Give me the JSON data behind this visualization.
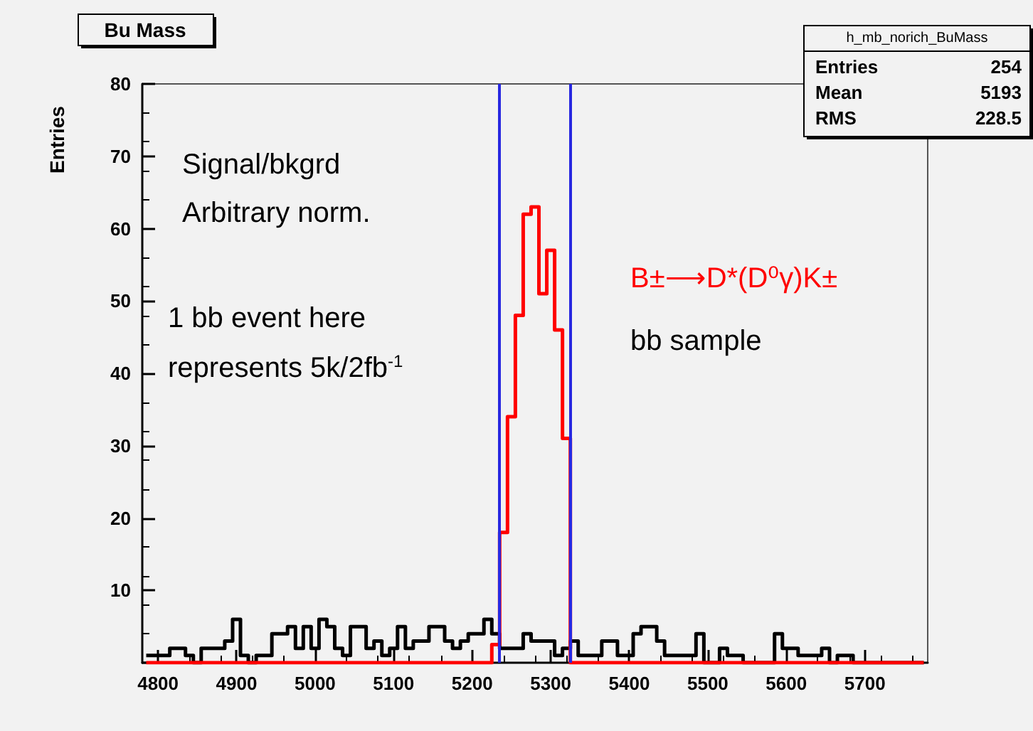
{
  "chart_data": {
    "type": "histogram",
    "title": "Bu Mass",
    "ylabel": "Entries",
    "bins": [
      4785,
      4795,
      4805,
      4815,
      4825,
      4835,
      4845,
      4855,
      4865,
      4875,
      4885,
      4895,
      4905,
      4915,
      4925,
      4935,
      4945,
      4955,
      4965,
      4975,
      4985,
      4995,
      5005,
      5015,
      5025,
      5035,
      5045,
      5055,
      5065,
      5075,
      5085,
      5095,
      5105,
      5115,
      5125,
      5135,
      5145,
      5155,
      5165,
      5175,
      5185,
      5195,
      5205,
      5215,
      5225,
      5235,
      5245,
      5255,
      5265,
      5275,
      5285,
      5295,
      5305,
      5315,
      5325,
      5335,
      5345,
      5355,
      5365,
      5375,
      5385,
      5395,
      5405,
      5415,
      5425,
      5435,
      5445,
      5455,
      5465,
      5475,
      5485,
      5495,
      5505,
      5515,
      5525,
      5535,
      5545,
      5555,
      5565,
      5575,
      5585,
      5595,
      5605,
      5615,
      5625,
      5635,
      5645,
      5655,
      5665,
      5675,
      5685,
      5695,
      5705,
      5715,
      5725,
      5735,
      5745,
      5755,
      5765,
      5775
    ],
    "series": [
      {
        "color": "#000000",
        "values": [
          1,
          1,
          1,
          2,
          2,
          1,
          0,
          2,
          2,
          2,
          3,
          6,
          1,
          0,
          1,
          1,
          4,
          4,
          5,
          2,
          5,
          2,
          6,
          5,
          2,
          1,
          5,
          5,
          2,
          3,
          1,
          2,
          5,
          2,
          3,
          3,
          5,
          5,
          3,
          2,
          3,
          4,
          4,
          6,
          4,
          2,
          2,
          2,
          4,
          3,
          3,
          3,
          1,
          2,
          3,
          1,
          1,
          1,
          3,
          3,
          1,
          1,
          4,
          5,
          5,
          3,
          1,
          1,
          1,
          1,
          4,
          0,
          0,
          2,
          1,
          1,
          0,
          0,
          0,
          0,
          4,
          2,
          2,
          1,
          1,
          1,
          2,
          0,
          1,
          1,
          0,
          0,
          0,
          0,
          0,
          0,
          0,
          0,
          0
        ]
      },
      {
        "color": "#ff0000",
        "values": [
          0,
          0,
          0,
          0,
          0,
          0,
          0,
          0,
          0,
          0,
          0,
          0,
          0,
          0,
          0,
          0,
          0,
          0,
          0,
          0,
          0,
          0,
          0,
          0,
          0,
          0,
          0,
          0,
          0,
          0,
          0,
          0,
          0,
          0,
          0,
          0,
          0,
          0,
          0,
          0,
          0,
          0,
          0,
          0,
          2.5,
          18,
          34,
          48,
          62,
          63,
          51,
          57,
          46,
          31,
          0,
          0,
          0,
          0,
          0,
          0,
          0,
          0,
          0,
          0,
          0,
          0,
          0,
          0,
          0,
          0,
          0,
          0,
          0,
          0,
          0,
          0,
          0,
          0,
          0,
          0,
          0,
          0,
          0,
          0,
          0,
          0,
          0,
          0,
          0,
          0,
          0,
          0,
          0,
          0,
          0,
          0,
          0,
          0,
          0
        ]
      }
    ],
    "xlim": [
      4780,
      5780
    ],
    "xticks": [
      4800,
      4900,
      5000,
      5100,
      5200,
      5300,
      5400,
      5500,
      5600,
      5700
    ],
    "ylim": [
      0,
      80
    ],
    "yticks": [
      {
        "value": 0,
        "label": null
      },
      10,
      20,
      30,
      40,
      50,
      60,
      70,
      80
    ],
    "ref_lines": [
      {
        "axis": "x",
        "value": 5235,
        "color": "#2828e0"
      },
      {
        "axis": "x",
        "value": 5325,
        "color": "#2828e0"
      }
    ],
    "annotations": [
      "Signal/bkgrd",
      "Arbitrary norm.",
      "1 bb event here",
      "represents 5k/2fb$^{-1}$",
      "B±⟶D*(D⁰γ)K±",
      "bb sample",
      "h_mb_norich_BuMass",
      "Entries 254",
      "Mean 5193",
      "RMS 228.5"
    ],
    "grid": false
  }
}
